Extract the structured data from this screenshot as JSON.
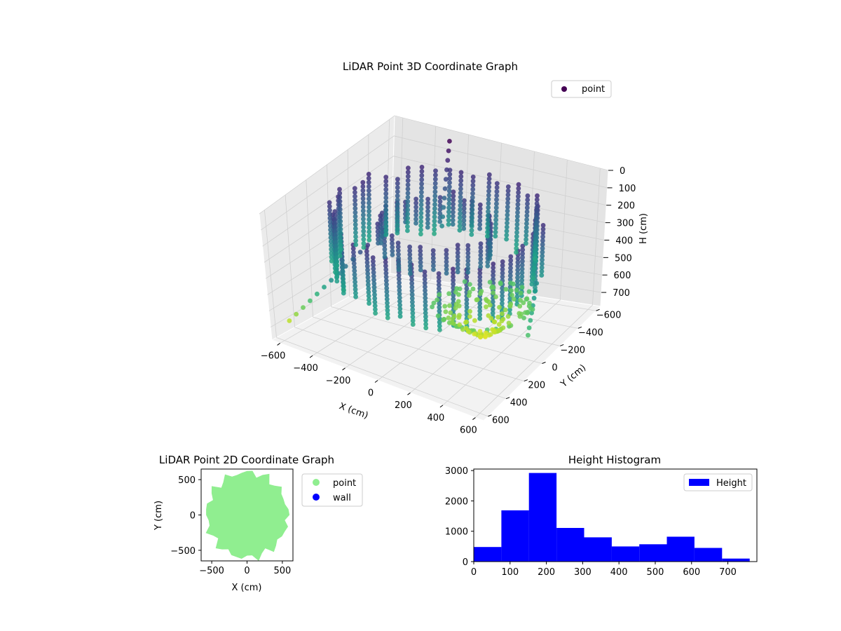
{
  "chart_data": [
    {
      "type": "scatter",
      "projection": "3d",
      "title": "LiDAR Point 3D Coordinate Graph",
      "xlabel": "X (cm)",
      "ylabel": "Y (cm)",
      "zlabel": "H (cm)",
      "xlim": [
        -650,
        650
      ],
      "ylim": [
        -650,
        650
      ],
      "zlim": [
        780,
        0
      ],
      "zaxis_inverted": true,
      "xticks": [
        -600,
        -400,
        -200,
        0,
        200,
        400,
        600
      ],
      "yticks": [
        -600,
        -400,
        -200,
        0,
        200,
        400,
        600
      ],
      "zticks": [
        0,
        100,
        200,
        300,
        400,
        500,
        600,
        700
      ],
      "colormap": "viridis",
      "grid": true,
      "legend_position": "top-right",
      "series": [
        {
          "name": "point",
          "legend_color": "#440154",
          "description_shape": "room scan: curved wall ring sampled as vertical strips from about 100 to 400 cm height, plus a bowl-shaped floor patch near 600-750 cm and a few beam lines",
          "rings": [
            {
              "radius": 560,
              "h_min": 100,
              "h_max": 420,
              "strips": 48
            },
            {
              "radius": 300,
              "h_min": 120,
              "h_max": 260,
              "strips": 28
            }
          ],
          "floor": {
            "cx": 250,
            "cy": -50,
            "r": 280,
            "h_min": 560,
            "h_max": 760
          }
        }
      ]
    },
    {
      "type": "scatter",
      "title": "LiDAR Point 2D Coordinate Graph",
      "xlabel": "X (cm)",
      "ylabel": "Y (cm)",
      "xlim": [
        -650,
        650
      ],
      "ylim": [
        -650,
        650
      ],
      "xticks": [
        -500,
        0,
        500
      ],
      "yticks": [
        -500,
        0,
        500
      ],
      "legend_position": "outside-right",
      "series": [
        {
          "name": "point",
          "color": "#90ee90",
          "shape": "filled region approx radius 570"
        },
        {
          "name": "wall",
          "color": "#0000ff",
          "count": 0
        }
      ]
    },
    {
      "type": "bar",
      "subtype": "histogram",
      "title": "Height Histogram",
      "xlim": [
        0,
        780
      ],
      "ylim": [
        0,
        3050
      ],
      "xticks": [
        0,
        100,
        200,
        300,
        400,
        500,
        600,
        700
      ],
      "yticks": [
        0,
        1000,
        2000,
        3000
      ],
      "legend_position": "top-right",
      "bin_edges": [
        0,
        76,
        152,
        228,
        304,
        380,
        456,
        532,
        608,
        684,
        760
      ],
      "series": [
        {
          "name": "Height",
          "color": "#0000ff",
          "values": [
            480,
            1690,
            2920,
            1110,
            800,
            500,
            570,
            820,
            450,
            100
          ]
        }
      ]
    }
  ]
}
